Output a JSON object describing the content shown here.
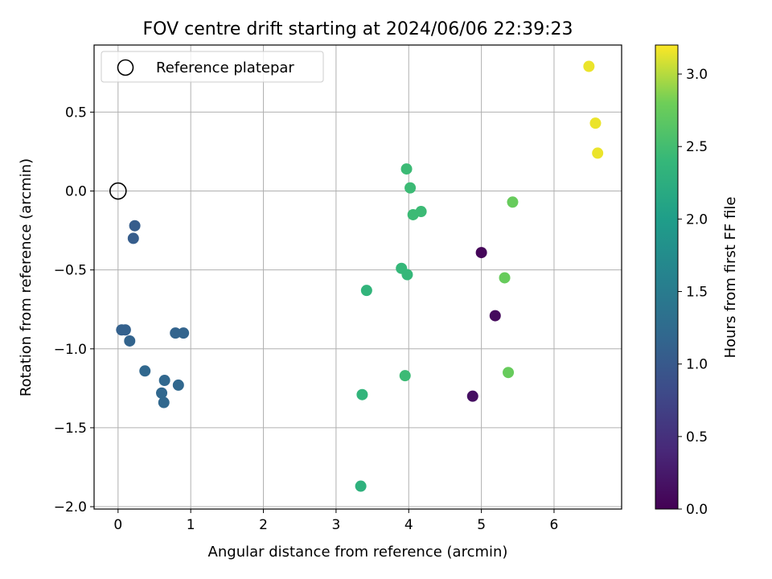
{
  "chart_data": {
    "type": "scatter",
    "title": "FOV centre drift starting at 2024/06/06 22:39:23",
    "xlabel": "Angular distance from reference (arcmin)",
    "ylabel": "Rotation from reference (arcmin)",
    "xlim": [
      -0.33,
      6.93
    ],
    "ylim": [
      -2.015,
      0.925
    ],
    "xticks": [
      0,
      1,
      2,
      3,
      4,
      5,
      6
    ],
    "xtick_labels": [
      "0",
      "1",
      "2",
      "3",
      "4",
      "5",
      "6"
    ],
    "yticks": [
      -2.0,
      -1.5,
      -1.0,
      -0.5,
      0.0,
      0.5
    ],
    "ytick_labels": [
      "−2.0",
      "−1.5",
      "−1.0",
      "−0.5",
      "0.0",
      "0.5"
    ],
    "grid": true,
    "legend": {
      "placement": "top-left",
      "entries": [
        "Reference platepar"
      ]
    },
    "reference_point": {
      "x": 0,
      "y": 0,
      "label": "Reference platepar"
    },
    "colorbar": {
      "label": "Hours from first FF file",
      "range": [
        0,
        3.2
      ],
      "ticks": [
        0.0,
        0.5,
        1.0,
        1.5,
        2.0,
        2.5,
        3.0
      ],
      "tick_labels": [
        "0.0",
        "0.5",
        "1.0",
        "1.5",
        "2.0",
        "2.5",
        "3.0"
      ],
      "colormap": "viridis"
    },
    "points": [
      {
        "x": 5.0,
        "y": -0.39,
        "t": 0.05
      },
      {
        "x": 5.19,
        "y": -0.79,
        "t": 0.1
      },
      {
        "x": 4.88,
        "y": -1.3,
        "t": 0.15
      },
      {
        "x": 0.23,
        "y": -0.22,
        "t": 1.05
      },
      {
        "x": 0.21,
        "y": -0.3,
        "t": 1.05
      },
      {
        "x": 0.05,
        "y": -0.88,
        "t": 1.1
      },
      {
        "x": 0.1,
        "y": -0.88,
        "t": 1.1
      },
      {
        "x": 0.16,
        "y": -0.95,
        "t": 1.15
      },
      {
        "x": 0.79,
        "y": -0.9,
        "t": 1.15
      },
      {
        "x": 0.9,
        "y": -0.9,
        "t": 1.15
      },
      {
        "x": 0.37,
        "y": -1.14,
        "t": 1.2
      },
      {
        "x": 0.64,
        "y": -1.2,
        "t": 1.2
      },
      {
        "x": 0.83,
        "y": -1.23,
        "t": 1.2
      },
      {
        "x": 0.6,
        "y": -1.28,
        "t": 1.2
      },
      {
        "x": 0.63,
        "y": -1.34,
        "t": 1.2
      },
      {
        "x": 3.42,
        "y": -0.63,
        "t": 2.35
      },
      {
        "x": 3.36,
        "y": -1.29,
        "t": 2.35
      },
      {
        "x": 3.34,
        "y": -1.87,
        "t": 2.3
      },
      {
        "x": 3.9,
        "y": -0.49,
        "t": 2.4
      },
      {
        "x": 3.98,
        "y": -0.53,
        "t": 2.4
      },
      {
        "x": 3.95,
        "y": -1.17,
        "t": 2.45
      },
      {
        "x": 3.97,
        "y": 0.14,
        "t": 2.45
      },
      {
        "x": 4.02,
        "y": 0.02,
        "t": 2.45
      },
      {
        "x": 4.06,
        "y": -0.15,
        "t": 2.45
      },
      {
        "x": 4.17,
        "y": -0.13,
        "t": 2.45
      },
      {
        "x": 5.43,
        "y": -0.07,
        "t": 2.75
      },
      {
        "x": 5.32,
        "y": -0.55,
        "t": 2.75
      },
      {
        "x": 5.37,
        "y": -1.15,
        "t": 2.75
      },
      {
        "x": 6.48,
        "y": 0.79,
        "t": 3.15
      },
      {
        "x": 6.57,
        "y": 0.43,
        "t": 3.15
      },
      {
        "x": 6.6,
        "y": 0.24,
        "t": 3.15
      }
    ]
  }
}
